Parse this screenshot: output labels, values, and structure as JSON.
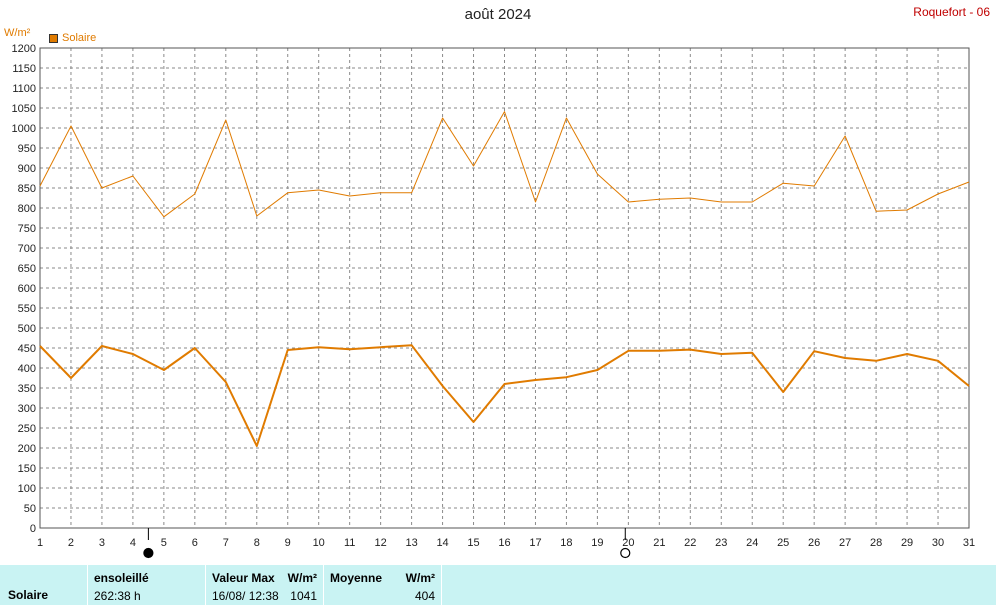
{
  "title": "août 2024",
  "station": "Roquefort - 06",
  "unit": "W/m²",
  "legend": {
    "label": "Solaire",
    "color": "#e07b00"
  },
  "chart_data": {
    "type": "line",
    "title": "août 2024",
    "ylabel": "W/m²",
    "ylim": [
      0,
      1200
    ],
    "ytick_step": 50,
    "x": [
      1,
      2,
      3,
      4,
      5,
      6,
      7,
      8,
      9,
      10,
      11,
      12,
      13,
      14,
      15,
      16,
      17,
      18,
      19,
      20,
      21,
      22,
      23,
      24,
      25,
      26,
      27,
      28,
      29,
      30,
      31
    ],
    "grid": true,
    "series": [
      {
        "name": "Solaire",
        "role": "max",
        "color": "#e07b00",
        "values": [
          855,
          1005,
          850,
          880,
          778,
          835,
          1020,
          780,
          838,
          845,
          830,
          838,
          838,
          1025,
          905,
          1041,
          815,
          1025,
          885,
          815,
          822,
          825,
          815,
          815,
          862,
          855,
          980,
          792,
          795,
          835,
          865
        ]
      },
      {
        "name": "Solaire",
        "role": "mean",
        "color": "#e07b00",
        "values": [
          455,
          375,
          455,
          435,
          395,
          450,
          365,
          205,
          445,
          452,
          447,
          452,
          457,
          355,
          265,
          360,
          370,
          377,
          395,
          443,
          443,
          446,
          435,
          438,
          340,
          442,
          425,
          418,
          435,
          418,
          355
        ]
      }
    ],
    "moon_phases": [
      {
        "day": 4.5,
        "phase": "new"
      },
      {
        "day": 19.9,
        "phase": "full"
      }
    ]
  },
  "footer": {
    "row_label": "Solaire",
    "sunshine_header": "ensoleillé",
    "sunshine_value": "262:38 h",
    "max_header": "Valeur Max",
    "max_unit": "W/m²",
    "max_date": "16/08/ 12:38",
    "max_value": "1041",
    "mean_header": "Moyenne",
    "mean_unit": "W/m²",
    "mean_value": "404"
  }
}
